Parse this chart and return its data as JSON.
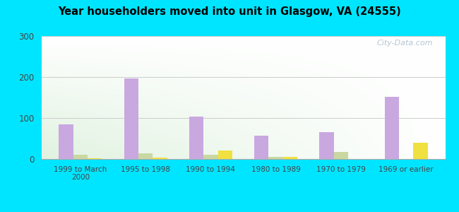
{
  "title": "Year householders moved into unit in Glasgow, VA (24555)",
  "categories": [
    "1999 to March\n2000",
    "1995 to 1998",
    "1990 to 1994",
    "1980 to 1989",
    "1970 to 1979",
    "1969 or earlier"
  ],
  "series": {
    "White Non-Hispanic": [
      85,
      196,
      103,
      57,
      65,
      151
    ],
    "Black": [
      10,
      14,
      10,
      6,
      18,
      0
    ],
    "Two or More Races": [
      2,
      4,
      20,
      5,
      0,
      40
    ]
  },
  "colors": {
    "White Non-Hispanic": "#c9a8e0",
    "Black": "#c8d8a0",
    "Two or More Races": "#f0e040"
  },
  "ylim": [
    0,
    300
  ],
  "yticks": [
    0,
    100,
    200,
    300
  ],
  "bar_width": 0.22,
  "outer_background": "#00e5ff",
  "watermark": "City-Data.com"
}
